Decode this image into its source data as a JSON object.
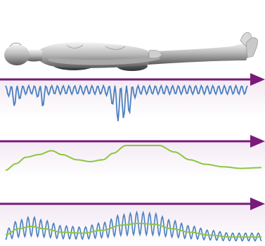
{
  "figure": {
    "subject": "body-lying-supine",
    "panels": [
      {
        "id": "panel-1",
        "axis_arrow_color": "#7a1a7a",
        "wave": {
          "kind": "baseline-oscillation",
          "color": "#4a7fc0",
          "n_samples": 230,
          "x_range": [
            0,
            1
          ],
          "components": [
            {
              "type": "sine",
              "freq": 42,
              "amp": 0.3
            },
            {
              "type": "dip",
              "center": 0.04,
              "width": 0.02,
              "depth": 0.45
            },
            {
              "type": "dip",
              "center": 0.15,
              "width": 0.015,
              "depth": 0.5
            },
            {
              "type": "dip",
              "center": 0.47,
              "width": 0.03,
              "depth": 1.0
            },
            {
              "type": "dip",
              "center": 0.51,
              "width": 0.02,
              "depth": 0.55
            }
          ]
        }
      },
      {
        "id": "panel-2",
        "axis_arrow_color": "#7a1a7a",
        "wave": {
          "kind": "smooth-envelope",
          "color": "#8dc63f",
          "n_samples": 230,
          "x_range": [
            0,
            1
          ],
          "profile": [
            [
              0.0,
              0.05
            ],
            [
              0.04,
              0.3
            ],
            [
              0.08,
              0.55
            ],
            [
              0.13,
              0.65
            ],
            [
              0.18,
              0.8
            ],
            [
              0.22,
              0.65
            ],
            [
              0.28,
              0.45
            ],
            [
              0.33,
              0.38
            ],
            [
              0.38,
              0.45
            ],
            [
              0.42,
              0.7
            ],
            [
              0.47,
              1.0
            ],
            [
              0.55,
              1.0
            ],
            [
              0.6,
              1.0
            ],
            [
              0.66,
              0.75
            ],
            [
              0.72,
              0.45
            ],
            [
              0.78,
              0.28
            ],
            [
              0.85,
              0.18
            ],
            [
              0.92,
              0.12
            ],
            [
              1.0,
              0.15
            ]
          ]
        }
      },
      {
        "id": "panel-3",
        "axis_arrow_color": "#7a1a7a",
        "wave_color": "#4a7fc0",
        "envelope_color": "#8dc63f",
        "wave": {
          "kind": "modulated-oscillation",
          "n_samples": 400,
          "freq": 40,
          "base_amp": 0.12,
          "peak_amp": 0.38
        },
        "envelope": {
          "profile": [
            [
              0.0,
              0.1
            ],
            [
              0.05,
              0.3
            ],
            [
              0.1,
              0.38
            ],
            [
              0.15,
              0.3
            ],
            [
              0.22,
              0.18
            ],
            [
              0.3,
              0.15
            ],
            [
              0.38,
              0.25
            ],
            [
              0.45,
              0.42
            ],
            [
              0.52,
              0.48
            ],
            [
              0.58,
              0.45
            ],
            [
              0.65,
              0.3
            ],
            [
              0.72,
              0.18
            ],
            [
              0.8,
              0.08
            ],
            [
              0.88,
              0.02
            ],
            [
              1.0,
              0.02
            ]
          ]
        }
      }
    ]
  }
}
